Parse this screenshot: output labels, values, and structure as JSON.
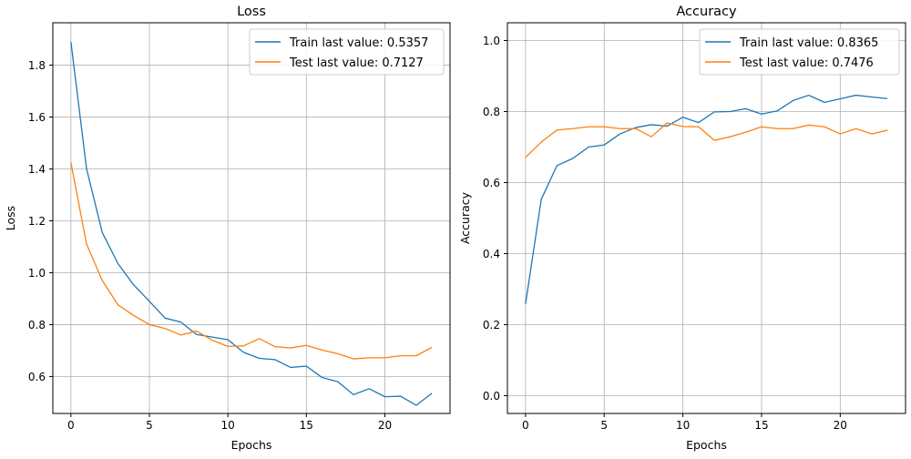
{
  "chart_data": [
    {
      "type": "line",
      "title": "Loss",
      "xlabel": "Epochs",
      "ylabel": "Loss",
      "xlim": [
        -1.15,
        24.15
      ],
      "ylim": [
        0.4575,
        1.9635
      ],
      "xticks": [
        0,
        5,
        10,
        15,
        20
      ],
      "yticks": [
        0.6,
        0.8,
        1.0,
        1.2,
        1.4,
        1.6,
        1.8
      ],
      "ytick_labels": [
        "0.6",
        "0.8",
        "1.0",
        "1.2",
        "1.4",
        "1.6",
        "1.8"
      ],
      "grid": true,
      "legend_position": "top-right",
      "x": [
        0,
        1,
        2,
        3,
        4,
        5,
        6,
        7,
        8,
        9,
        10,
        11,
        12,
        13,
        14,
        15,
        16,
        17,
        18,
        19,
        20,
        21,
        22,
        23
      ],
      "series": [
        {
          "name": "Train last value: 0.5357",
          "color": "#1f77b4",
          "values": [
            1.89,
            1.4,
            1.155,
            1.035,
            0.953,
            0.89,
            0.825,
            0.81,
            0.762,
            0.752,
            0.742,
            0.693,
            0.67,
            0.665,
            0.635,
            0.64,
            0.596,
            0.58,
            0.53,
            0.553,
            0.522,
            0.524,
            0.489,
            0.5357
          ]
        },
        {
          "name": "Test last value: 0.7127",
          "color": "#ff7f0e",
          "values": [
            1.425,
            1.11,
            0.97,
            0.876,
            0.835,
            0.8,
            0.785,
            0.76,
            0.775,
            0.74,
            0.716,
            0.718,
            0.746,
            0.715,
            0.71,
            0.72,
            0.702,
            0.688,
            0.668,
            0.672,
            0.672,
            0.68,
            0.68,
            0.7127
          ]
        }
      ]
    },
    {
      "type": "line",
      "title": "Accuracy",
      "xlabel": "Epochs",
      "ylabel": "Accuracy",
      "xlim": [
        -1.15,
        24.15
      ],
      "ylim": [
        -0.05,
        1.05
      ],
      "xticks": [
        0,
        5,
        10,
        15,
        20
      ],
      "yticks": [
        0.0,
        0.2,
        0.4,
        0.6,
        0.8,
        1.0
      ],
      "ytick_labels": [
        "0.0",
        "0.2",
        "0.4",
        "0.6",
        "0.8",
        "1.0"
      ],
      "grid": true,
      "legend_position": "top-right",
      "x": [
        0,
        1,
        2,
        3,
        4,
        5,
        6,
        7,
        8,
        9,
        10,
        11,
        12,
        13,
        14,
        15,
        16,
        17,
        18,
        19,
        20,
        21,
        22,
        23
      ],
      "series": [
        {
          "name": "Train last value: 0.8365",
          "color": "#1f77b4",
          "values": [
            0.258,
            0.553,
            0.648,
            0.668,
            0.7,
            0.706,
            0.737,
            0.755,
            0.763,
            0.759,
            0.784,
            0.769,
            0.799,
            0.8,
            0.808,
            0.793,
            0.802,
            0.831,
            0.846,
            0.826,
            0.836,
            0.846,
            0.841,
            0.8365
          ]
        },
        {
          "name": "Test last value: 0.7476",
          "color": "#ff7f0e",
          "values": [
            0.671,
            0.714,
            0.748,
            0.752,
            0.757,
            0.757,
            0.752,
            0.752,
            0.729,
            0.768,
            0.758,
            0.757,
            0.719,
            0.729,
            0.742,
            0.757,
            0.752,
            0.752,
            0.762,
            0.757,
            0.737,
            0.752,
            0.737,
            0.7476
          ]
        }
      ]
    }
  ]
}
